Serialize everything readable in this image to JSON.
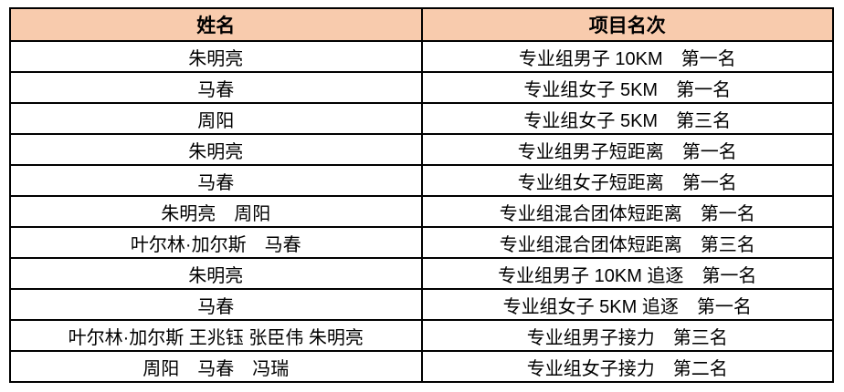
{
  "colors": {
    "header_bg": "#F8CBAD",
    "border": "#000000",
    "text": "#000000",
    "page_bg": "#FFFFFF"
  },
  "table": {
    "headers": {
      "name": "姓名",
      "event": "项目名次"
    },
    "rows": [
      {
        "name": "朱明亮",
        "result": "专业组男子 10KM　第一名"
      },
      {
        "name": "马春",
        "result": "专业组女子 5KM　第一名"
      },
      {
        "name": "周阳",
        "result": "专业组女子 5KM　第三名"
      },
      {
        "name": "朱明亮",
        "result": "专业组男子短距离　第一名"
      },
      {
        "name": "马春",
        "result": "专业组女子短距离　第一名"
      },
      {
        "name": "朱明亮　周阳",
        "result": "专业组混合团体短距离　第一名"
      },
      {
        "name": "叶尔林·加尔斯　马春",
        "result": "专业组混合团体短距离　第三名"
      },
      {
        "name": "朱明亮",
        "result": "专业组男子 10KM 追逐　第一名"
      },
      {
        "name": "马春",
        "result": "专业组女子 5KM 追逐　第一名"
      },
      {
        "name": "叶尔林·加尔斯 王兆钰 张臣伟 朱明亮",
        "result": "专业组男子接力　第三名"
      },
      {
        "name": "周阳　马春　冯瑞",
        "result": "专业组女子接力　第二名"
      }
    ]
  }
}
